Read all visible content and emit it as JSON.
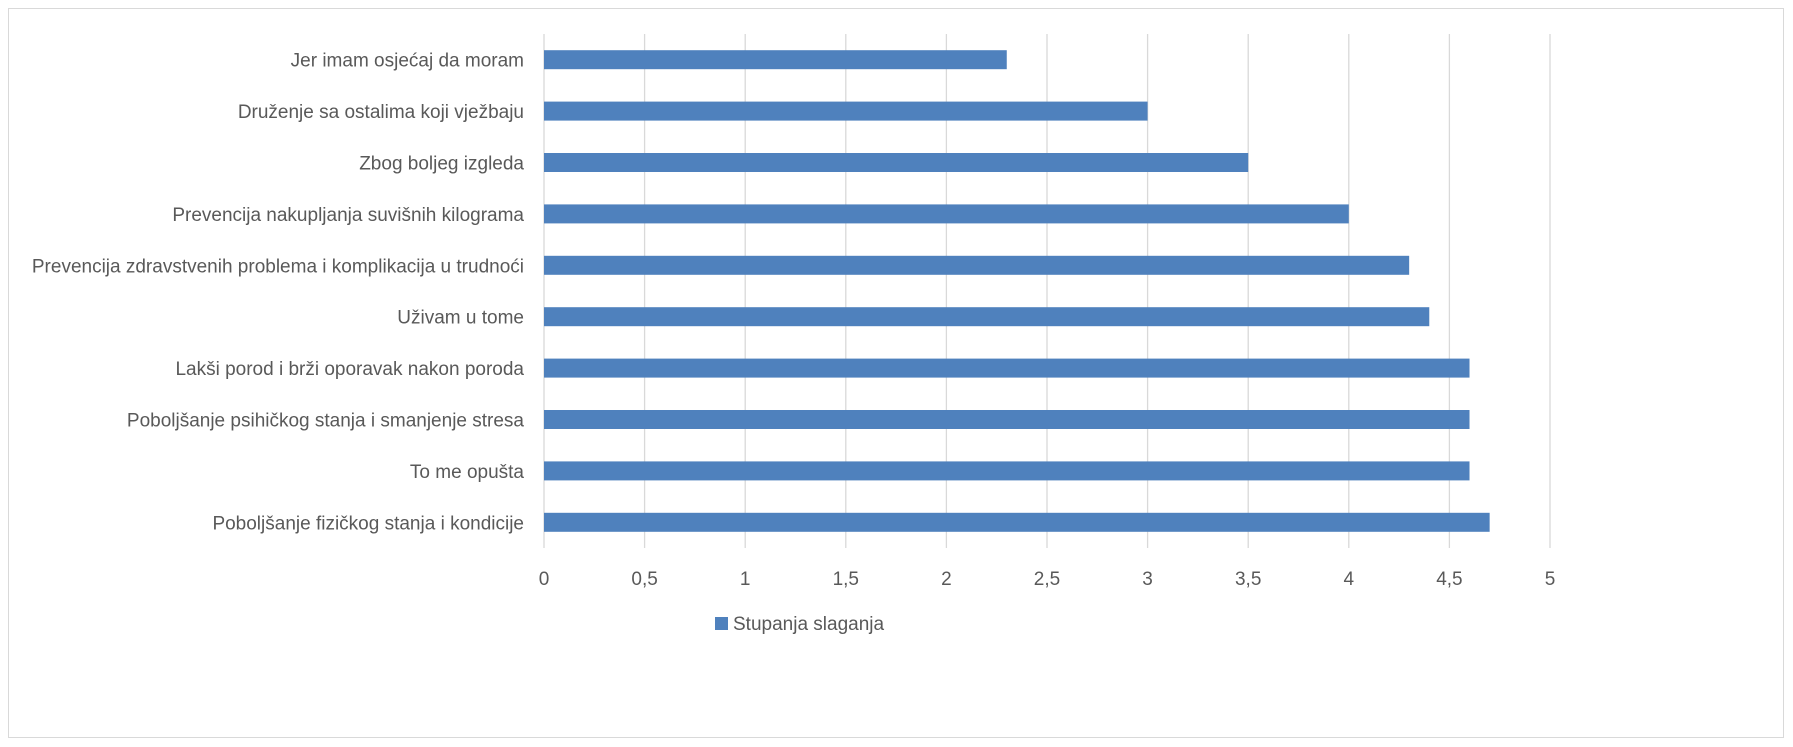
{
  "chart_data": {
    "type": "bar",
    "orientation": "horizontal",
    "categories": [
      "Jer imam osjećaj da moram",
      "Druženje sa ostalima koji vježbaju",
      "Zbog boljeg izgleda",
      "Prevencija nakupljanja suvišnih kilograma",
      "Prevencija zdravstvenih problema i komplikacija u trudnoći",
      "Uživam u tome",
      "Lakši porod i brži oporavak nakon poroda",
      "Poboljšanje psihičkog stanja i smanjenje stresa",
      "To me opušta",
      "Poboljšanje fizičkog stanja i kondicije"
    ],
    "series": [
      {
        "name": "Stupanja slaganja",
        "values": [
          2.3,
          3.0,
          3.5,
          4.0,
          4.3,
          4.4,
          4.6,
          4.6,
          4.6,
          4.7
        ],
        "color": "#4f81bd"
      }
    ],
    "xlim": [
      0,
      5
    ],
    "xticks": [
      "0",
      "0,5",
      "1",
      "1,5",
      "2",
      "2,5",
      "3",
      "3,5",
      "4",
      "4,5",
      "5"
    ],
    "grid": true,
    "legend_position": "bottom",
    "title": "",
    "xlabel": "",
    "ylabel": ""
  }
}
